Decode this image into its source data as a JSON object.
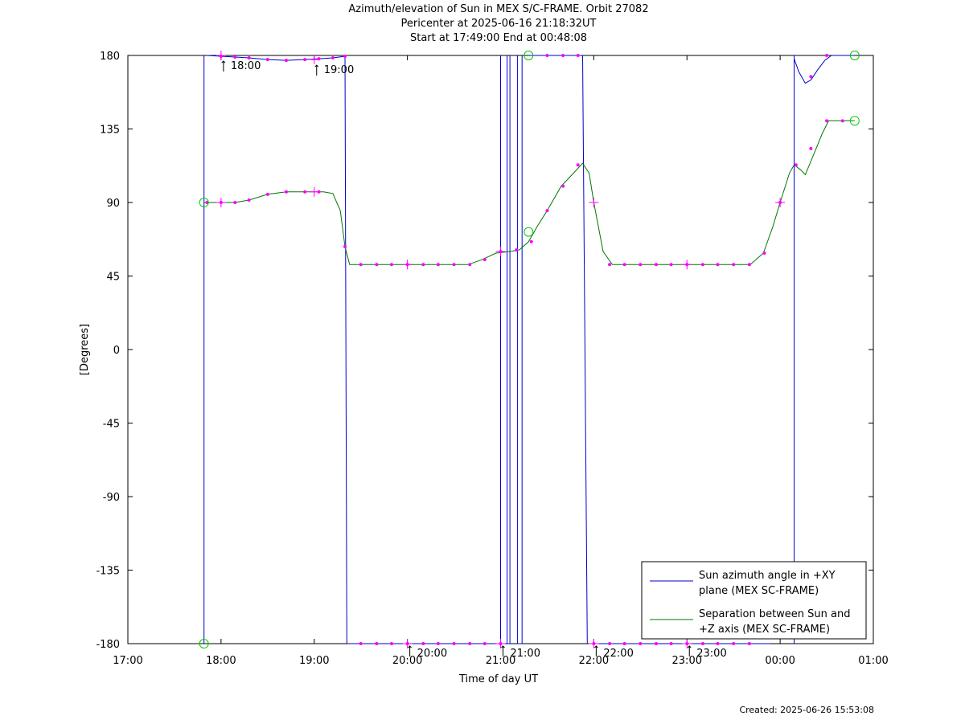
{
  "title": {
    "line1": "Azimuth/elevation of Sun in MEX S/C-FRAME.  Orbit 27082",
    "line2": "Pericenter at 2025-06-16 21:18:32UT",
    "line3": "Start at 17:49:00 End at 00:48:08"
  },
  "footer": {
    "created": "Created: 2025-06-26 15:53:08"
  },
  "chart_data": {
    "type": "line",
    "xlabel": "Time of day UT",
    "ylabel": "[Degrees]",
    "x_unit": "hours of day UT (values past 24 continue into the next day)",
    "xlim": [
      17.0,
      25.0
    ],
    "ylim": [
      -180,
      180
    ],
    "x_ticks": [
      17,
      18,
      19,
      20,
      21,
      22,
      23,
      24,
      25
    ],
    "x_tick_labels": [
      "17:00",
      "18:00",
      "19:00",
      "20:00",
      "21:00",
      "22:00",
      "23:00",
      "00:00",
      "01:00"
    ],
    "y_ticks": [
      180,
      135,
      90,
      45,
      0,
      -45,
      -90,
      -135,
      -180
    ],
    "y_tick_labels": [
      "180",
      "135",
      "90",
      "45",
      "0",
      "-45",
      "-90",
      "-135",
      "-180"
    ],
    "grid": false,
    "legend_position": "bottom-right",
    "colors": {
      "azimuth": "#0000cc",
      "separation": "#007700",
      "markers": "#ff00ff",
      "endpoints": "#00cc00"
    },
    "series": [
      {
        "name": "Sun azimuth angle in +XY plane (MEX SC-FRAME)",
        "color": "#0000cc",
        "segments": [
          [
            [
              17.817,
              -180
            ],
            [
              17.817,
              180
            ]
          ],
          [
            [
              17.85,
              180
            ],
            [
              18.0,
              179.5
            ],
            [
              18.15,
              179
            ],
            [
              18.3,
              178.5
            ],
            [
              18.5,
              177.5
            ],
            [
              18.7,
              177
            ],
            [
              18.9,
              177.5
            ],
            [
              19.05,
              178
            ],
            [
              19.2,
              178.5
            ],
            [
              19.33,
              179.5
            ]
          ],
          [
            [
              19.33,
              180
            ],
            [
              19.35,
              -180
            ]
          ],
          [
            [
              19.36,
              -180
            ],
            [
              19.5,
              -180
            ],
            [
              20.0,
              -180
            ],
            [
              20.5,
              -180
            ],
            [
              20.9,
              -180
            ],
            [
              21.0,
              -180
            ]
          ],
          [
            [
              21.0,
              -180
            ],
            [
              21.0,
              180
            ]
          ],
          [
            [
              21.07,
              180
            ],
            [
              21.07,
              -180
            ]
          ],
          [
            [
              21.07,
              -180
            ],
            [
              21.1,
              -180
            ]
          ],
          [
            [
              21.1,
              -180
            ],
            [
              21.1,
              180
            ]
          ],
          [
            [
              21.18,
              180
            ],
            [
              21.18,
              -180
            ]
          ],
          [
            [
              21.18,
              -180
            ],
            [
              21.23,
              -180
            ]
          ],
          [
            [
              21.23,
              -180
            ],
            [
              21.23,
              180
            ]
          ],
          [
            [
              21.3,
              180
            ],
            [
              21.5,
              180
            ],
            [
              21.7,
              180
            ],
            [
              21.88,
              180
            ]
          ],
          [
            [
              21.88,
              180
            ],
            [
              21.93,
              -180
            ]
          ],
          [
            [
              21.95,
              -180
            ],
            [
              22.5,
              -180
            ],
            [
              23.0,
              -180
            ],
            [
              23.3,
              -180
            ],
            [
              23.65,
              -180
            ],
            [
              23.9,
              -180
            ]
          ],
          [
            [
              24.15,
              -180
            ],
            [
              24.15,
              180
            ]
          ],
          [
            [
              24.15,
              178
            ],
            [
              24.2,
              170
            ],
            [
              24.27,
              163
            ],
            [
              24.33,
              165
            ],
            [
              24.4,
              171
            ],
            [
              24.48,
              177
            ],
            [
              24.55,
              180
            ],
            [
              24.8,
              180
            ]
          ]
        ]
      },
      {
        "name": "Separation between Sun and +Z axis (MEX SC-FRAME)",
        "color": "#007700",
        "points": [
          [
            17.817,
            90
          ],
          [
            18.0,
            90
          ],
          [
            18.15,
            90
          ],
          [
            18.3,
            91.5
          ],
          [
            18.5,
            95
          ],
          [
            18.7,
            96.5
          ],
          [
            18.9,
            96.5
          ],
          [
            19.1,
            96.5
          ],
          [
            19.2,
            95.5
          ],
          [
            19.28,
            85
          ],
          [
            19.33,
            63
          ],
          [
            19.38,
            52
          ],
          [
            19.5,
            52
          ],
          [
            20.0,
            52
          ],
          [
            20.5,
            52
          ],
          [
            20.65,
            52
          ],
          [
            20.8,
            55
          ],
          [
            20.95,
            59
          ],
          [
            21.1,
            60
          ],
          [
            21.2,
            61
          ],
          [
            21.3,
            66
          ],
          [
            21.4,
            76
          ],
          [
            21.5,
            85
          ],
          [
            21.65,
            100
          ],
          [
            21.75,
            106
          ],
          [
            21.88,
            114
          ],
          [
            21.95,
            108
          ],
          [
            22.0,
            90
          ],
          [
            22.1,
            60
          ],
          [
            22.2,
            52
          ],
          [
            22.5,
            52
          ],
          [
            23.0,
            52
          ],
          [
            23.5,
            52
          ],
          [
            23.68,
            52
          ],
          [
            23.82,
            59
          ],
          [
            23.92,
            75
          ],
          [
            24.0,
            90
          ],
          [
            24.1,
            108
          ],
          [
            24.15,
            113
          ],
          [
            24.22,
            110
          ],
          [
            24.27,
            107
          ],
          [
            24.35,
            118
          ],
          [
            24.45,
            132
          ],
          [
            24.52,
            140
          ],
          [
            24.8,
            140
          ]
        ]
      }
    ],
    "markers": [
      [
        18.0,
        179.5
      ],
      [
        18.15,
        179
      ],
      [
        18.3,
        178.5
      ],
      [
        18.5,
        177.5
      ],
      [
        18.7,
        177
      ],
      [
        18.9,
        177.5
      ],
      [
        19.05,
        178
      ],
      [
        19.2,
        178.5
      ],
      [
        19.33,
        179.5
      ],
      [
        17.85,
        90
      ],
      [
        18.0,
        90
      ],
      [
        18.15,
        90
      ],
      [
        18.3,
        91.5
      ],
      [
        18.5,
        95
      ],
      [
        18.7,
        96.5
      ],
      [
        18.9,
        96.5
      ],
      [
        19.05,
        96.5
      ],
      [
        19.33,
        63
      ],
      [
        19.5,
        52
      ],
      [
        19.67,
        52
      ],
      [
        19.83,
        52
      ],
      [
        20.0,
        52
      ],
      [
        20.17,
        52
      ],
      [
        20.33,
        52
      ],
      [
        20.5,
        52
      ],
      [
        20.67,
        52
      ],
      [
        20.83,
        55
      ],
      [
        21.0,
        60
      ],
      [
        21.17,
        61
      ],
      [
        21.33,
        66
      ],
      [
        21.5,
        85
      ],
      [
        21.67,
        100
      ],
      [
        21.83,
        113
      ],
      [
        22.17,
        52
      ],
      [
        22.33,
        52
      ],
      [
        22.5,
        52
      ],
      [
        22.67,
        52
      ],
      [
        22.83,
        52
      ],
      [
        23.0,
        52
      ],
      [
        23.17,
        52
      ],
      [
        23.33,
        52
      ],
      [
        23.5,
        52
      ],
      [
        23.67,
        52
      ],
      [
        23.83,
        59
      ],
      [
        24.0,
        90
      ],
      [
        24.17,
        113
      ],
      [
        24.33,
        123
      ],
      [
        24.5,
        140
      ],
      [
        24.67,
        140
      ],
      [
        19.5,
        -180
      ],
      [
        19.67,
        -180
      ],
      [
        19.83,
        -180
      ],
      [
        20.0,
        -180
      ],
      [
        20.17,
        -180
      ],
      [
        20.33,
        -180
      ],
      [
        20.5,
        -180
      ],
      [
        20.67,
        -180
      ],
      [
        20.83,
        -180
      ],
      [
        21.0,
        -180
      ],
      [
        21.5,
        180
      ],
      [
        21.67,
        180
      ],
      [
        21.83,
        180
      ],
      [
        22.0,
        -180
      ],
      [
        22.17,
        -180
      ],
      [
        22.33,
        -180
      ],
      [
        22.5,
        -180
      ],
      [
        22.67,
        -180
      ],
      [
        22.83,
        -180
      ],
      [
        23.0,
        -180
      ],
      [
        23.17,
        -180
      ],
      [
        23.33,
        -180
      ],
      [
        23.5,
        -180
      ],
      [
        23.67,
        -180
      ],
      [
        24.33,
        167
      ],
      [
        24.5,
        180
      ]
    ],
    "hour_crosses": [
      [
        18.0,
        180
      ],
      [
        18.0,
        90
      ],
      [
        19.0,
        177.5
      ],
      [
        19.0,
        96.5
      ],
      [
        20.0,
        -180
      ],
      [
        20.0,
        52
      ],
      [
        21.0,
        -180
      ],
      [
        21.0,
        60
      ],
      [
        22.0,
        -180
      ],
      [
        22.0,
        90
      ],
      [
        23.0,
        -180
      ],
      [
        23.0,
        52
      ],
      [
        24.0,
        90
      ]
    ],
    "endpoint_circles": [
      [
        17.817,
        -180
      ],
      [
        17.817,
        90
      ],
      [
        21.3,
        180
      ],
      [
        21.3,
        72
      ],
      [
        24.8,
        180
      ],
      [
        24.8,
        140
      ]
    ],
    "annotations": [
      {
        "x": 18.0,
        "y": 180,
        "text": "18:00",
        "below": true
      },
      {
        "x": 19.0,
        "y": 177.5,
        "text": "19:00",
        "below": true
      },
      {
        "x": 20.0,
        "y": -180,
        "text": "20:00",
        "below": false
      },
      {
        "x": 21.0,
        "y": -180,
        "text": "21:00",
        "below": false
      },
      {
        "x": 22.0,
        "y": -180,
        "text": "22:00",
        "below": false
      },
      {
        "x": 23.0,
        "y": -180,
        "text": "23:00",
        "below": false
      }
    ]
  },
  "legend": {
    "items": [
      {
        "line1": "Sun azimuth angle in +XY",
        "line2": "plane (MEX SC-FRAME)",
        "color": "#0000cc"
      },
      {
        "line1": "Separation between Sun and",
        "line2": "+Z axis (MEX SC-FRAME)",
        "color": "#007700"
      }
    ]
  }
}
